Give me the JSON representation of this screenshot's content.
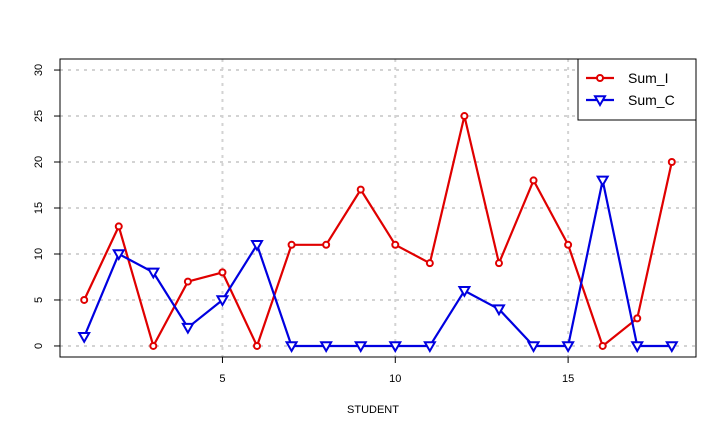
{
  "chart_data": {
    "type": "line",
    "title": "",
    "xlabel": "STUDENT",
    "ylabel": "",
    "x": [
      1,
      2,
      3,
      4,
      5,
      6,
      7,
      8,
      9,
      10,
      11,
      12,
      13,
      14,
      15,
      16,
      17,
      18
    ],
    "xlim": [
      0.3,
      18.7
    ],
    "ylim": [
      -1.2,
      31.2
    ],
    "xticks": [
      5,
      10,
      15
    ],
    "yticks": [
      0,
      5,
      10,
      15,
      20,
      25,
      30
    ],
    "grid": true,
    "legend_position": "top-right",
    "series": [
      {
        "name": "Sum_I",
        "color": "#e00000",
        "marker": "circle",
        "values": [
          5,
          13,
          0,
          7,
          8,
          0,
          11,
          11,
          17,
          11,
          9,
          25,
          9,
          18,
          11,
          0,
          3,
          20
        ]
      },
      {
        "name": "Sum_C",
        "color": "#0000e0",
        "marker": "triangle-down",
        "values": [
          1,
          10,
          8,
          2,
          5,
          11,
          0,
          0,
          0,
          0,
          0,
          6,
          4,
          0,
          0,
          18,
          0,
          0
        ]
      }
    ]
  }
}
